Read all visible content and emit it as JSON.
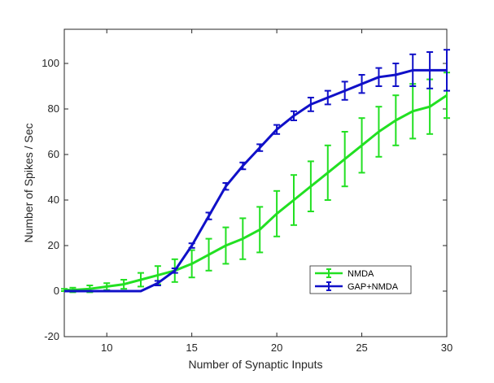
{
  "chart_data": {
    "type": "line",
    "xlabel": "Number of Synaptic Inputs",
    "ylabel": "Number of Spikes / Sec",
    "xlim": [
      7.5,
      30
    ],
    "ylim": [
      -20,
      115
    ],
    "xticks": [
      10,
      15,
      20,
      25,
      30
    ],
    "yticks": [
      -20,
      0,
      20,
      40,
      60,
      80,
      100
    ],
    "grid": false,
    "legend_position": "lower-right",
    "series": [
      {
        "name": "NMDA",
        "color": "#22e022",
        "x": [
          7.5,
          8,
          9,
          10,
          11,
          12,
          13,
          14,
          15,
          16,
          17,
          18,
          19,
          20,
          21,
          22,
          23,
          24,
          25,
          26,
          27,
          28,
          29,
          30
        ],
        "y": [
          0.5,
          0.5,
          1,
          2,
          3,
          5,
          7,
          9,
          12,
          16,
          20,
          23,
          27,
          34,
          40,
          46,
          52,
          58,
          64,
          70,
          75,
          79,
          81,
          86
        ],
        "err": [
          0.5,
          1,
          1.5,
          1.5,
          2,
          3,
          4,
          5,
          6,
          7,
          8,
          9,
          10,
          10,
          11,
          11,
          12,
          12,
          12,
          11,
          11,
          12,
          12,
          10
        ]
      },
      {
        "name": "GAP+NMDA",
        "color": "#1010c8",
        "x": [
          7.5,
          8,
          9,
          10,
          11,
          12,
          13,
          14,
          15,
          16,
          17,
          18,
          19,
          20,
          21,
          22,
          23,
          24,
          25,
          26,
          27,
          28,
          29,
          30
        ],
        "y": [
          0,
          0,
          0,
          0,
          0,
          0,
          3.5,
          9,
          20,
          33,
          46,
          55,
          63,
          71,
          77,
          82,
          85,
          88,
          91,
          94,
          95,
          97,
          97,
          97
        ],
        "err": [
          0,
          0,
          0,
          0,
          0,
          0,
          1,
          1,
          1,
          1.5,
          1.5,
          1.5,
          1.5,
          2,
          2,
          3,
          3,
          4,
          4,
          4,
          5,
          7,
          8,
          9
        ]
      }
    ]
  }
}
